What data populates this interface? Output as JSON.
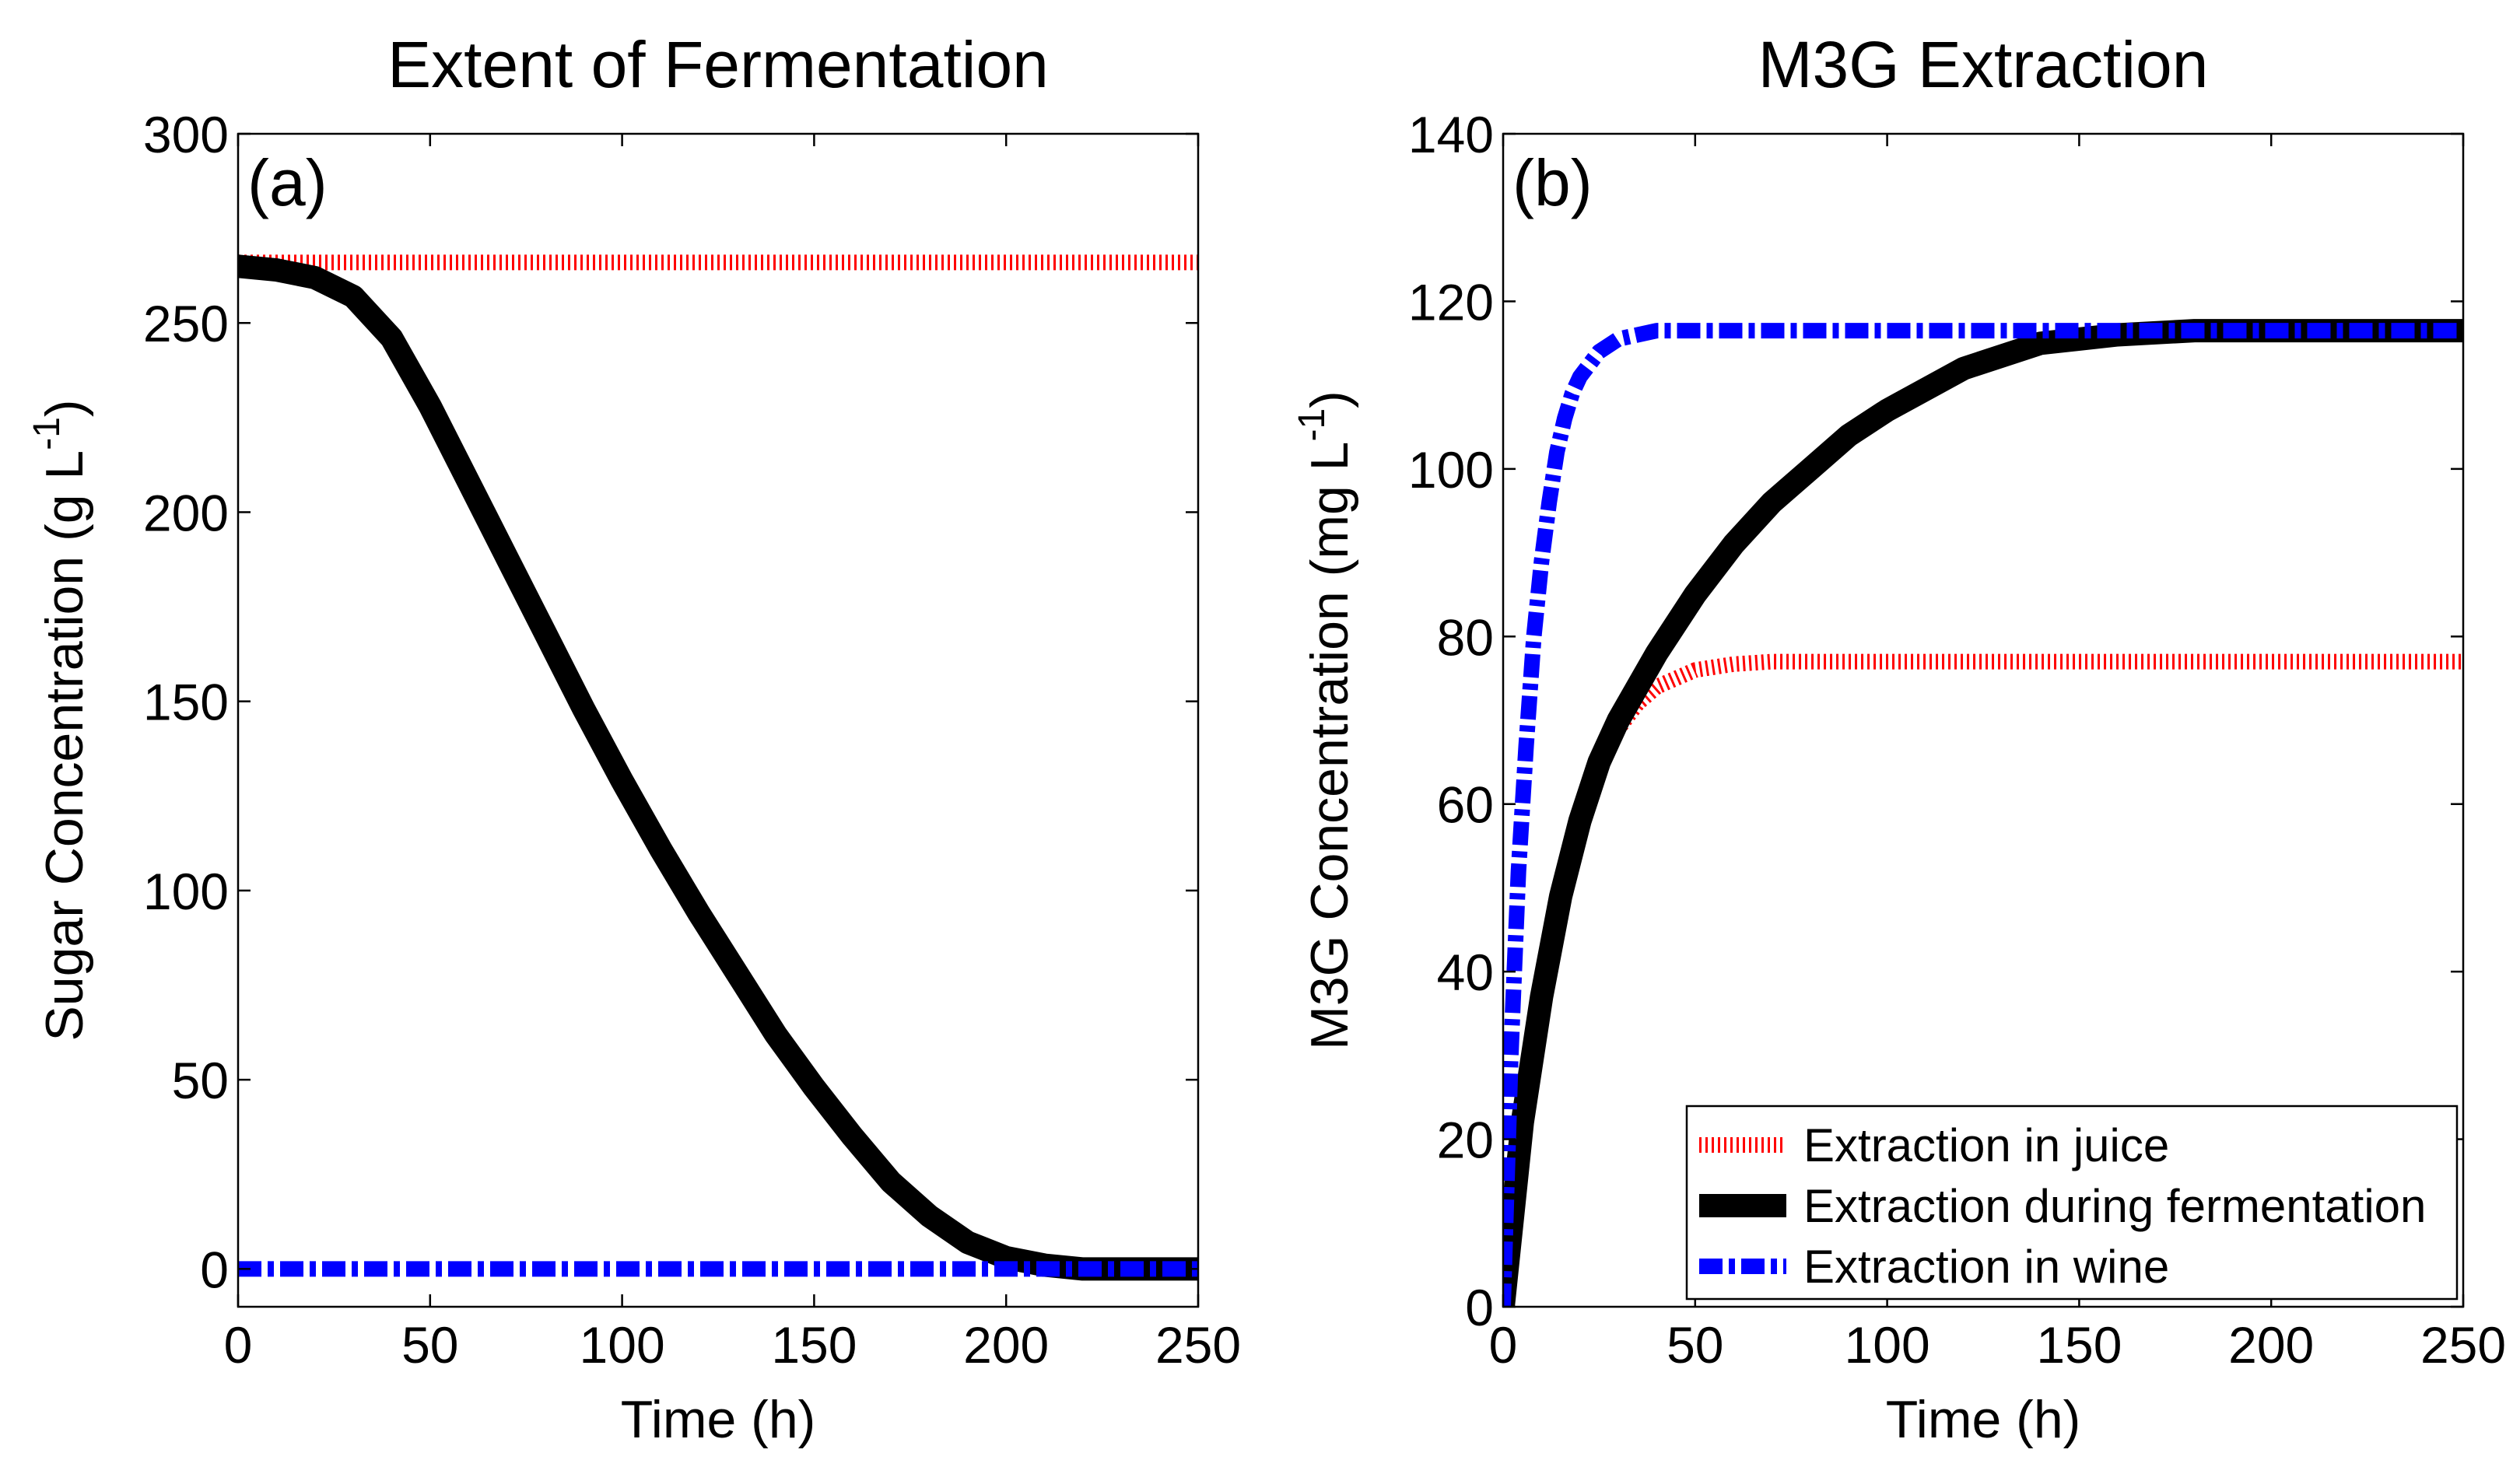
{
  "chart_data": [
    {
      "type": "line",
      "panel_label": "(a)",
      "title": "Extent of Fermentation",
      "xlabel": "Time (h)",
      "ylabel": "Sugar Concentration (g L",
      "ylabel_sup": "-1",
      "ylabel_close": ")",
      "xlim": [
        0,
        250
      ],
      "ylim": [
        -10,
        300
      ],
      "xticks": [
        0,
        50,
        100,
        150,
        200,
        250
      ],
      "yticks": [
        0,
        50,
        100,
        150,
        200,
        250,
        300
      ],
      "grid": false,
      "series": [
        {
          "name": "Extraction in juice",
          "color": "#ff0000",
          "style": "dotted",
          "x": [
            0,
            250
          ],
          "y": [
            266,
            266
          ]
        },
        {
          "name": "Extraction during fermentation",
          "color": "#000000",
          "style": "solid",
          "x": [
            0,
            10,
            20,
            30,
            40,
            50,
            60,
            70,
            80,
            90,
            100,
            110,
            120,
            130,
            140,
            150,
            160,
            170,
            180,
            190,
            200,
            210,
            220,
            230,
            240,
            250
          ],
          "y": [
            265,
            264,
            262,
            257,
            246,
            228,
            208,
            188,
            168,
            148,
            129,
            111,
            94,
            78,
            62,
            48,
            35,
            23,
            14,
            7,
            3,
            1,
            0,
            0,
            0,
            0
          ]
        },
        {
          "name": "Extraction in wine",
          "color": "#0000ff",
          "style": "dashdot",
          "x": [
            0,
            250
          ],
          "y": [
            0,
            0
          ]
        }
      ]
    },
    {
      "type": "line",
      "panel_label": "(b)",
      "title": "M3G Extraction",
      "xlabel": "Time (h)",
      "ylabel": "M3G Concentration (mg L",
      "ylabel_sup": "-1",
      "ylabel_close": ")",
      "xlim": [
        0,
        250
      ],
      "ylim": [
        0,
        140
      ],
      "xticks": [
        0,
        50,
        100,
        150,
        200,
        250
      ],
      "yticks": [
        0,
        20,
        40,
        60,
        80,
        100,
        120,
        140
      ],
      "grid": false,
      "legend_position": "bottom-right",
      "series": [
        {
          "name": "Extraction in juice",
          "color": "#ff0000",
          "style": "dotted",
          "x": [
            0,
            5,
            10,
            15,
            20,
            25,
            30,
            35,
            40,
            50,
            60,
            70,
            80,
            100,
            150,
            200,
            250
          ],
          "y": [
            0,
            22,
            38,
            50,
            59,
            65,
            69,
            72,
            74,
            76,
            76.7,
            77,
            77,
            77,
            77,
            77,
            77
          ]
        },
        {
          "name": "Extraction during fermentation",
          "color": "#000000",
          "style": "solid",
          "x": [
            0,
            5,
            10,
            15,
            20,
            25,
            30,
            40,
            50,
            60,
            70,
            80,
            90,
            100,
            120,
            140,
            160,
            180,
            200,
            250
          ],
          "y": [
            0,
            22,
            37,
            49,
            58,
            65,
            70,
            78,
            85,
            91,
            96,
            100,
            104,
            107,
            112,
            115,
            116,
            116.5,
            116.5,
            116.5
          ]
        },
        {
          "name": "Extraction in wine",
          "color": "#0000ff",
          "style": "dashdot",
          "x": [
            0,
            2,
            4,
            6,
            8,
            10,
            12,
            14,
            16,
            18,
            20,
            25,
            30,
            35,
            40,
            60,
            100,
            150,
            200,
            250
          ],
          "y": [
            0,
            30,
            52,
            67,
            80,
            89,
            96,
            102,
            106,
            109,
            111,
            114,
            115.5,
            116,
            116.5,
            116.5,
            116.5,
            116.5,
            116.5,
            116.5
          ]
        }
      ]
    }
  ]
}
